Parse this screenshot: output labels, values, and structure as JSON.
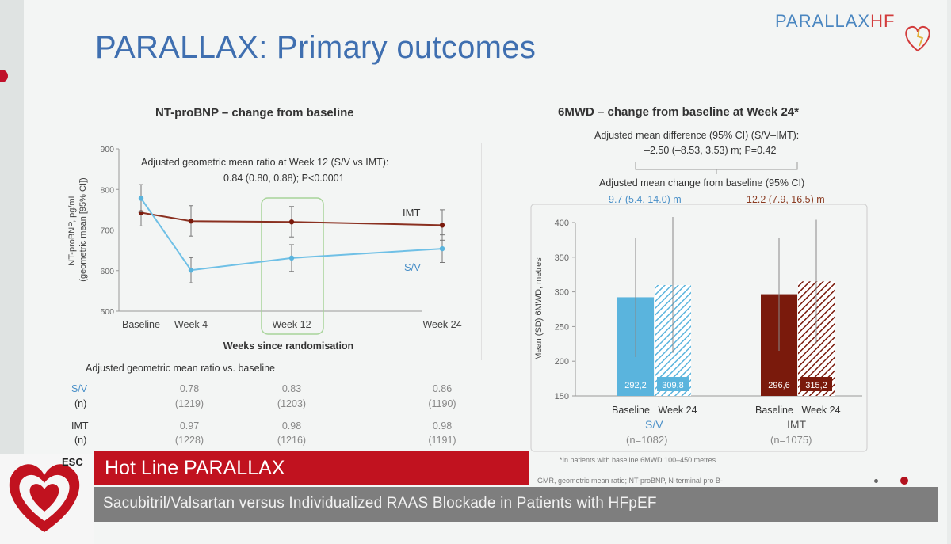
{
  "slide": {
    "title": "PARALLAX: Primary outcomes",
    "logo_main": "PARALLAX",
    "logo_accent": "HF"
  },
  "left_panel": {
    "heading": "NT-proBNP – change from baseline",
    "annotation_line1": "Adjusted geometric mean ratio at Week 12 (S/V vs IMT):",
    "annotation_line2": "0.84 (0.80, 0.88); P<0.0001",
    "series_label_imt": "IMT",
    "series_label_sv": "S/V",
    "table": {
      "heading": "Adjusted geometric mean ratio vs. baseline",
      "rows": [
        {
          "label": "S/V",
          "values": [
            "0.78",
            "0.83",
            "0.86"
          ]
        },
        {
          "label": "(n)",
          "values": [
            "(1219)",
            "(1203)",
            "(1190)"
          ]
        },
        {
          "label": "IMT",
          "values": [
            "0.97",
            "0.98",
            "0.98"
          ]
        },
        {
          "label": "(n)",
          "values": [
            "(1228)",
            "(1216)",
            "(1191)"
          ]
        }
      ]
    }
  },
  "right_panel": {
    "heading": "6MWD – change from baseline at Week 24*",
    "diff_line1": "Adjusted mean difference (95% CI) (S/V–IMT):",
    "diff_line2": "–2.50 (–8.53, 3.53) m; P=0.42",
    "change_heading": "Adjusted mean change from baseline (95% CI)",
    "sv_change": "9.7 (5.4, 14.0) m",
    "imt_change": "12.2 (7.9, 16.5) m",
    "group_sv": "S/V",
    "group_sv_n": "(n=1082)",
    "group_imt": "IMT",
    "group_imt_n": "(n=1075)",
    "footnote": "*In patients with baseline 6MWD 100–450 metres"
  },
  "footer": {
    "hotline": "Hot Line PARALLAX",
    "subtitle": "Sacubitril/Valsartan versus Individualized RAAS Blockade in Patients with HFpEF",
    "abbrev": "GMR, geometric mean ratio; NT-proBNP, N-terminal pro B-",
    "esc": "ESC"
  },
  "colors": {
    "sv": "#5ab4dd",
    "imt": "#7a1a0c",
    "title": "#3f6fb0",
    "banner": "#c1121f"
  },
  "chart_data": [
    {
      "type": "line",
      "title": "NT-proBNP – change from baseline",
      "xlabel": "Weeks since randomisation",
      "ylabel": "NT-proBNP, pg/mL (geometric mean [95% CI])",
      "categories": [
        "Baseline",
        "Week 4",
        "Week 12",
        "Week 24"
      ],
      "ylim": [
        500,
        900
      ],
      "yticks": [
        500,
        600,
        700,
        800,
        900
      ],
      "series": [
        {
          "name": "IMT",
          "values": [
            743,
            722,
            720,
            712
          ],
          "lower": [
            710,
            685,
            683,
            675
          ],
          "upper": [
            778,
            760,
            758,
            750
          ]
        },
        {
          "name": "S/V",
          "values": [
            778,
            601,
            631,
            654
          ],
          "lower": [
            745,
            570,
            598,
            620
          ],
          "upper": [
            812,
            632,
            664,
            688
          ]
        }
      ],
      "grid": false,
      "legend": "inline"
    },
    {
      "type": "bar",
      "title": "6MWD – change from baseline at Week 24*",
      "ylabel": "Mean (SD) 6MWD, metres",
      "ylim": [
        150,
        400
      ],
      "yticks": [
        150,
        200,
        250,
        300,
        350,
        400
      ],
      "groups": [
        "S/V",
        "IMT"
      ],
      "categories": [
        "Baseline",
        "Week 24",
        "Baseline",
        "Week 24"
      ],
      "values": [
        292.2,
        309.8,
        296.6,
        315.2
      ],
      "value_labels": [
        "292,2",
        "309,8",
        "296,6",
        "315,2"
      ],
      "sd_upper": [
        378,
        408,
        378,
        404
      ],
      "sd_lower": [
        206,
        212,
        215,
        226
      ],
      "grid": false
    }
  ]
}
